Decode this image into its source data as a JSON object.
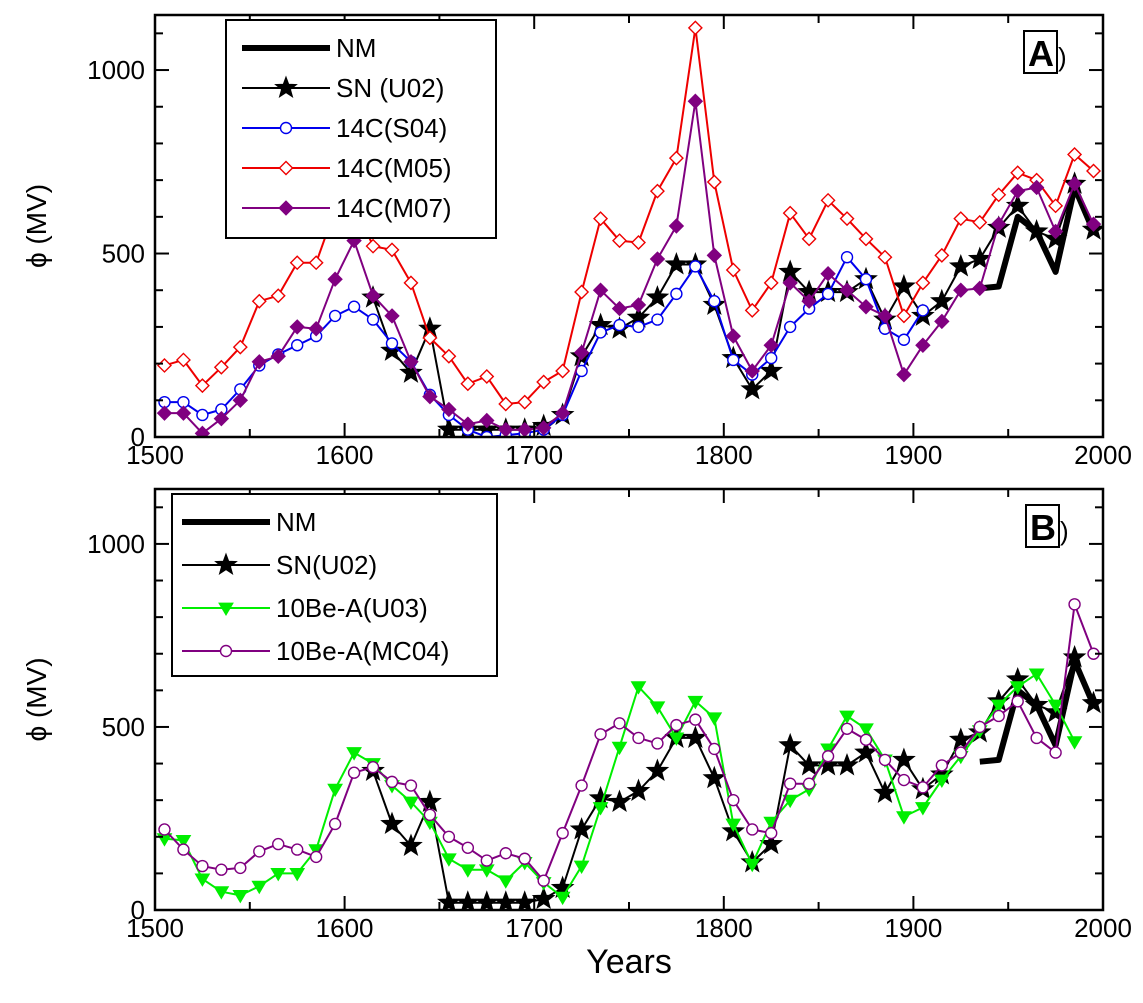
{
  "chart_data": [
    {
      "type": "line",
      "panel_label": "A)",
      "xlabel": "",
      "ylabel": "ϕ (MV)",
      "xlim": [
        1500,
        2000
      ],
      "ylim": [
        0,
        1150
      ],
      "xticks": [
        1500,
        1600,
        1700,
        1800,
        1900,
        2000
      ],
      "yticks": [
        0,
        500,
        1000
      ],
      "grid": false,
      "legend_position": "top-left",
      "series": [
        {
          "name": "NM",
          "color": "#000000",
          "marker": "none",
          "x": [
            1935,
            1945,
            1955,
            1965,
            1975,
            1985,
            1995
          ],
          "y": [
            405,
            410,
            600,
            560,
            450,
            680,
            560
          ]
        },
        {
          "name": "SN (U02)",
          "color": "#000000",
          "marker": "star",
          "x": [
            1615,
            1625,
            1635,
            1645,
            1655,
            1665,
            1675,
            1685,
            1695,
            1705,
            1715,
            1725,
            1735,
            1745,
            1755,
            1765,
            1775,
            1785,
            1795,
            1805,
            1815,
            1825,
            1835,
            1845,
            1855,
            1865,
            1875,
            1885,
            1895,
            1905,
            1915,
            1925,
            1935,
            1945,
            1955,
            1965,
            1975,
            1985,
            1995
          ],
          "y": [
            380,
            235,
            175,
            295,
            20,
            20,
            20,
            20,
            20,
            30,
            60,
            220,
            305,
            295,
            325,
            380,
            470,
            470,
            360,
            215,
            130,
            180,
            450,
            395,
            395,
            395,
            430,
            320,
            410,
            330,
            370,
            465,
            485,
            570,
            630,
            560,
            540,
            690,
            565
          ]
        },
        {
          "name": "14C(S04)",
          "color": "#0000ee",
          "marker": "open-circle",
          "x": [
            1505,
            1515,
            1525,
            1535,
            1545,
            1555,
            1565,
            1575,
            1585,
            1595,
            1605,
            1615,
            1625,
            1635,
            1645,
            1655,
            1665,
            1675,
            1685,
            1695,
            1705,
            1715,
            1725,
            1735,
            1745,
            1755,
            1765,
            1775,
            1785,
            1795,
            1805,
            1815,
            1825,
            1835,
            1845,
            1855,
            1865,
            1875,
            1885,
            1895,
            1905
          ],
          "y": [
            95,
            95,
            60,
            75,
            130,
            195,
            225,
            250,
            275,
            330,
            355,
            320,
            255,
            205,
            115,
            60,
            20,
            0,
            5,
            10,
            20,
            60,
            180,
            285,
            305,
            300,
            320,
            390,
            465,
            370,
            210,
            170,
            215,
            300,
            350,
            390,
            490,
            430,
            295,
            265,
            345
          ]
        },
        {
          "name": "14C(M05)",
          "color": "#ee0000",
          "marker": "open-diamond",
          "x": [
            1505,
            1515,
            1525,
            1535,
            1545,
            1555,
            1565,
            1575,
            1585,
            1595,
            1605,
            1615,
            1625,
            1635,
            1645,
            1655,
            1665,
            1675,
            1685,
            1695,
            1705,
            1715,
            1725,
            1735,
            1745,
            1755,
            1765,
            1775,
            1785,
            1795,
            1805,
            1815,
            1825,
            1835,
            1845,
            1855,
            1865,
            1875,
            1885,
            1895,
            1905,
            1915,
            1925,
            1935,
            1945,
            1955,
            1965,
            1975,
            1985,
            1995
          ],
          "y": [
            195,
            210,
            140,
            190,
            245,
            370,
            385,
            475,
            475,
            620,
            640,
            520,
            510,
            420,
            270,
            220,
            145,
            165,
            90,
            95,
            150,
            180,
            395,
            595,
            535,
            530,
            670,
            760,
            1115,
            695,
            455,
            345,
            420,
            610,
            540,
            645,
            595,
            540,
            490,
            330,
            420,
            495,
            595,
            585,
            660,
            720,
            700,
            630,
            770,
            725
          ]
        },
        {
          "name": "14C(M07)",
          "color": "#800080",
          "marker": "filled-diamond",
          "x": [
            1505,
            1515,
            1525,
            1535,
            1545,
            1555,
            1565,
            1575,
            1585,
            1595,
            1605,
            1615,
            1625,
            1635,
            1645,
            1655,
            1665,
            1675,
            1685,
            1695,
            1705,
            1715,
            1725,
            1735,
            1745,
            1755,
            1765,
            1775,
            1785,
            1795,
            1805,
            1815,
            1825,
            1835,
            1845,
            1855,
            1865,
            1875,
            1885,
            1895,
            1905,
            1915,
            1925,
            1935,
            1945,
            1955,
            1965,
            1975,
            1985,
            1995
          ],
          "y": [
            65,
            65,
            10,
            50,
            100,
            205,
            220,
            300,
            295,
            430,
            535,
            385,
            330,
            205,
            110,
            75,
            35,
            45,
            20,
            20,
            25,
            65,
            230,
            400,
            350,
            360,
            485,
            575,
            915,
            495,
            275,
            180,
            250,
            420,
            370,
            445,
            400,
            355,
            330,
            170,
            250,
            315,
            400,
            405,
            580,
            670,
            680,
            560,
            690,
            580
          ]
        }
      ]
    },
    {
      "type": "line",
      "panel_label": "B)",
      "xlabel": "Years",
      "ylabel": "ϕ (MV)",
      "xlim": [
        1500,
        2000
      ],
      "ylim": [
        0,
        1150
      ],
      "xticks": [
        1500,
        1600,
        1700,
        1800,
        1900,
        2000
      ],
      "yticks": [
        0,
        500,
        1000
      ],
      "grid": false,
      "legend_position": "top-left",
      "series": [
        {
          "name": "NM",
          "color": "#000000",
          "marker": "none",
          "x": [
            1935,
            1945,
            1955,
            1965,
            1975,
            1985,
            1995
          ],
          "y": [
            405,
            410,
            600,
            560,
            450,
            680,
            560
          ]
        },
        {
          "name": "SN(U02)",
          "color": "#000000",
          "marker": "star",
          "x": [
            1615,
            1625,
            1635,
            1645,
            1655,
            1665,
            1675,
            1685,
            1695,
            1705,
            1715,
            1725,
            1735,
            1745,
            1755,
            1765,
            1775,
            1785,
            1795,
            1805,
            1815,
            1825,
            1835,
            1845,
            1855,
            1865,
            1875,
            1885,
            1895,
            1905,
            1915,
            1925,
            1935,
            1945,
            1955,
            1965,
            1975,
            1985,
            1995
          ],
          "y": [
            380,
            235,
            175,
            295,
            20,
            20,
            20,
            20,
            20,
            30,
            60,
            220,
            305,
            295,
            325,
            380,
            470,
            470,
            360,
            215,
            130,
            180,
            450,
            395,
            395,
            395,
            430,
            320,
            410,
            330,
            370,
            465,
            485,
            570,
            630,
            560,
            540,
            690,
            565
          ]
        },
        {
          "name": "10Be-A(U03)",
          "color": "#00ee00",
          "marker": "filled-triangle-down",
          "x": [
            1505,
            1515,
            1525,
            1535,
            1545,
            1555,
            1565,
            1575,
            1585,
            1595,
            1605,
            1615,
            1625,
            1635,
            1645,
            1655,
            1665,
            1675,
            1685,
            1695,
            1705,
            1715,
            1725,
            1735,
            1745,
            1755,
            1765,
            1775,
            1785,
            1795,
            1805,
            1815,
            1825,
            1835,
            1845,
            1855,
            1865,
            1875,
            1885,
            1895,
            1905,
            1915,
            1925,
            1935,
            1945,
            1955,
            1965,
            1975,
            1985
          ],
          "y": [
            195,
            190,
            85,
            50,
            40,
            65,
            100,
            100,
            165,
            330,
            430,
            400,
            340,
            295,
            240,
            140,
            110,
            110,
            80,
            130,
            75,
            35,
            120,
            280,
            445,
            610,
            555,
            470,
            570,
            525,
            235,
            125,
            240,
            300,
            330,
            440,
            530,
            495,
            410,
            255,
            280,
            355,
            420,
            490,
            560,
            610,
            645,
            560,
            460
          ]
        },
        {
          "name": "10Be-A(MC04)",
          "color": "#800080",
          "marker": "open-circle",
          "x": [
            1505,
            1515,
            1525,
            1535,
            1545,
            1555,
            1565,
            1575,
            1585,
            1595,
            1605,
            1615,
            1625,
            1635,
            1645,
            1655,
            1665,
            1675,
            1685,
            1695,
            1705,
            1715,
            1725,
            1735,
            1745,
            1755,
            1765,
            1775,
            1785,
            1795,
            1805,
            1815,
            1825,
            1835,
            1845,
            1855,
            1865,
            1875,
            1885,
            1895,
            1905,
            1915,
            1925,
            1935,
            1945,
            1955,
            1965,
            1975,
            1985,
            1995
          ],
          "y": [
            220,
            165,
            120,
            110,
            115,
            160,
            180,
            165,
            145,
            235,
            375,
            390,
            350,
            340,
            260,
            200,
            170,
            135,
            155,
            140,
            80,
            210,
            340,
            480,
            510,
            470,
            455,
            505,
            520,
            440,
            300,
            220,
            210,
            345,
            345,
            420,
            495,
            465,
            410,
            355,
            335,
            395,
            430,
            500,
            530,
            570,
            470,
            430,
            835,
            700
          ]
        }
      ]
    }
  ]
}
